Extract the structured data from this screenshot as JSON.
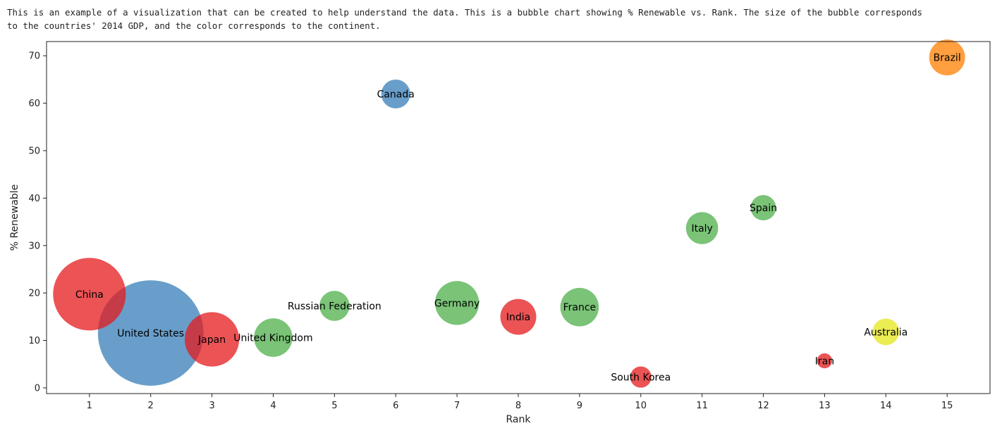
{
  "description": {
    "line1": "This is an example of a visualization that can be created to help understand the data. This is a bubble chart showing % Renewable vs. Rank. The size of the bubble corresponds",
    "line2": "to the countries' 2014 GDP, and the color corresponds to the continent."
  },
  "chart_data": {
    "type": "scatter",
    "title": "",
    "xlabel": "Rank",
    "ylabel": "% Renewable",
    "xlim": [
      0.3,
      15.7
    ],
    "ylim": [
      -1.2,
      73
    ],
    "xticks": [
      1,
      2,
      3,
      4,
      5,
      6,
      7,
      8,
      9,
      10,
      11,
      12,
      13,
      14,
      15
    ],
    "yticks": [
      0,
      10,
      20,
      30,
      40,
      50,
      60,
      70
    ],
    "grid": false,
    "size_encoding": "2014 GDP",
    "color_encoding": "continent",
    "points": [
      {
        "label": "China",
        "x": 1,
        "y": 19.75,
        "size": 8.2,
        "color": "#e41a1c"
      },
      {
        "label": "United States",
        "x": 2,
        "y": 11.57,
        "size": 17.3,
        "color": "#377eb8"
      },
      {
        "label": "Japan",
        "x": 3,
        "y": 10.23,
        "size": 4.6,
        "color": "#e41a1c"
      },
      {
        "label": "United Kingdom",
        "x": 4,
        "y": 10.6,
        "size": 2.3,
        "color": "#4daf4a"
      },
      {
        "label": "Russian Federation",
        "x": 5,
        "y": 17.29,
        "size": 1.4,
        "color": "#4daf4a"
      },
      {
        "label": "Canada",
        "x": 6,
        "y": 61.95,
        "size": 1.3,
        "color": "#377eb8"
      },
      {
        "label": "Germany",
        "x": 7,
        "y": 17.9,
        "size": 3.0,
        "color": "#4daf4a"
      },
      {
        "label": "India",
        "x": 8,
        "y": 14.97,
        "size": 2.0,
        "color": "#e41a1c"
      },
      {
        "label": "France",
        "x": 9,
        "y": 17.02,
        "size": 2.3,
        "color": "#4daf4a"
      },
      {
        "label": "South Korea",
        "x": 10,
        "y": 2.28,
        "size": 0.7,
        "color": "#e41a1c"
      },
      {
        "label": "Italy",
        "x": 11,
        "y": 33.67,
        "size": 1.6,
        "color": "#4daf4a"
      },
      {
        "label": "Spain",
        "x": 12,
        "y": 37.97,
        "size": 1.0,
        "color": "#4daf4a"
      },
      {
        "label": "Iran",
        "x": 13,
        "y": 5.71,
        "size": 0.35,
        "color": "#e41a1c"
      },
      {
        "label": "Australia",
        "x": 14,
        "y": 11.81,
        "size": 1.1,
        "color": "#e6e619"
      },
      {
        "label": "Brazil",
        "x": 15,
        "y": 69.65,
        "size": 2.0,
        "color": "#ff7f00"
      }
    ]
  }
}
